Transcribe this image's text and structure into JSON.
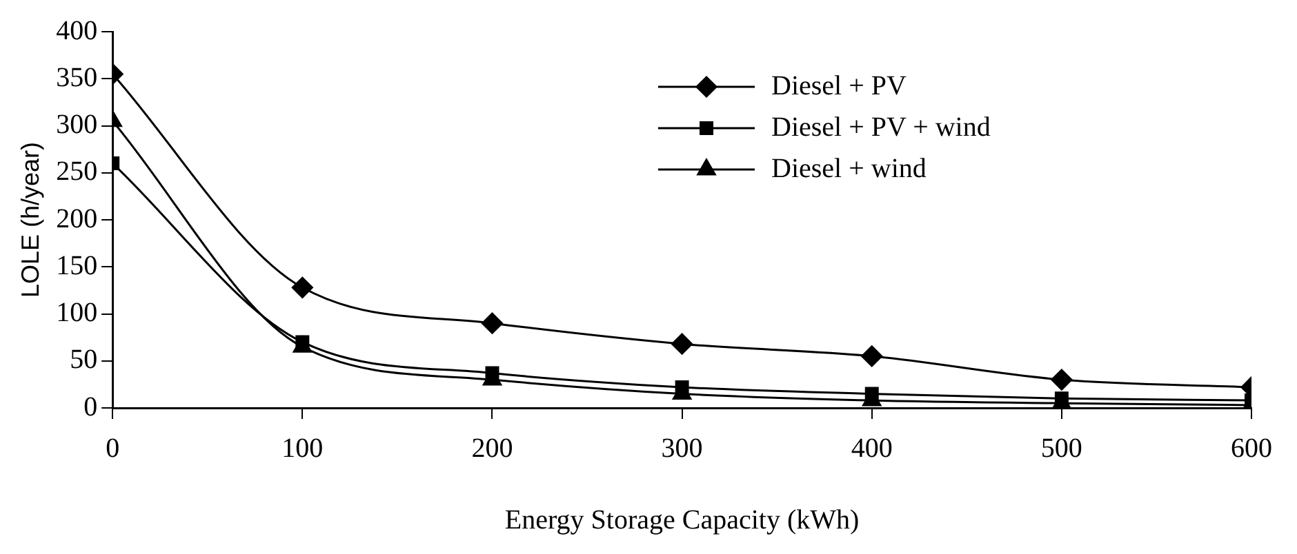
{
  "chart_data": {
    "type": "line",
    "xlabel": "Energy Storage Capacity (kWh)",
    "ylabel": "LOLE (h/year)",
    "x": [
      0,
      100,
      200,
      300,
      400,
      500,
      600
    ],
    "xlim": [
      0,
      600
    ],
    "xticks": [
      0,
      100,
      200,
      300,
      400,
      500,
      600
    ],
    "ylim": [
      0,
      400
    ],
    "yticks": [
      0,
      50,
      100,
      150,
      200,
      250,
      300,
      350,
      400
    ],
    "grid": false,
    "legend": "top right",
    "series": [
      {
        "name": "Diesel + PV",
        "color": "#000000",
        "marker": "diamond",
        "values": [
          355,
          128,
          90,
          68,
          55,
          30,
          22
        ]
      },
      {
        "name": "Diesel + PV + wind",
        "color": "#000000",
        "marker": "square",
        "values": [
          260,
          70,
          37,
          22,
          15,
          10,
          8
        ]
      },
      {
        "name": "Diesel + wind",
        "color": "#000000",
        "marker": "triangle",
        "values": [
          305,
          65,
          30,
          15,
          8,
          5,
          3
        ]
      }
    ]
  }
}
